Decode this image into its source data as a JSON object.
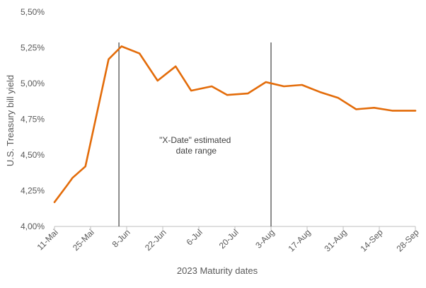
{
  "chart_data": {
    "type": "line",
    "xlabel": "2023 Maturity dates",
    "ylabel": "U.S. Treasury  bill yield",
    "yticks": [
      "4,00%",
      "4,25%",
      "4,50%",
      "4,75%",
      "5,00%",
      "5,25%",
      "5,50%"
    ],
    "ytick_values": [
      4.0,
      4.25,
      4.5,
      4.75,
      5.0,
      5.25,
      5.5
    ],
    "ylim": [
      4.0,
      5.5
    ],
    "xlim": [
      "2023-05-11",
      "2023-09-28"
    ],
    "xticks": [
      "11-Mai",
      "25-Mai",
      "8-Jun",
      "22-Jun",
      "6-Jul",
      "20-Jul",
      "3-Aug",
      "17-Aug",
      "31-Aug",
      "14-Sep",
      "28-Sep"
    ],
    "xtick_dates": [
      "2023-05-11",
      "2023-05-25",
      "2023-06-08",
      "2023-06-22",
      "2023-07-06",
      "2023-07-20",
      "2023-08-03",
      "2023-08-17",
      "2023-08-31",
      "2023-09-14",
      "2023-09-28"
    ],
    "grid": false,
    "line_color": "#E36C0A",
    "series": [
      {
        "x": [
          "2023-05-11",
          "2023-05-16",
          "2023-05-18",
          "2023-05-23",
          "2023-06-01",
          "2023-06-06",
          "2023-06-13",
          "2023-06-20",
          "2023-06-27",
          "2023-07-03",
          "2023-07-11",
          "2023-07-17",
          "2023-07-25",
          "2023-08-01",
          "2023-08-08",
          "2023-08-15",
          "2023-08-22",
          "2023-08-29",
          "2023-09-05",
          "2023-09-12",
          "2023-09-19",
          "2023-09-28"
        ],
        "y": [
          4.17,
          4.29,
          4.34,
          4.42,
          5.17,
          5.26,
          5.21,
          5.02,
          5.12,
          4.95,
          4.98,
          4.92,
          4.93,
          5.01,
          4.98,
          4.99,
          4.94,
          4.9,
          4.82,
          4.83,
          4.81,
          4.81
        ]
      }
    ],
    "vlines": [
      "2023-06-05",
      "2023-08-03"
    ],
    "annotation": {
      "text": [
        "\"X-Date\" estimated",
        "date range"
      ],
      "x": "2023-07-05",
      "y": 4.55
    }
  }
}
